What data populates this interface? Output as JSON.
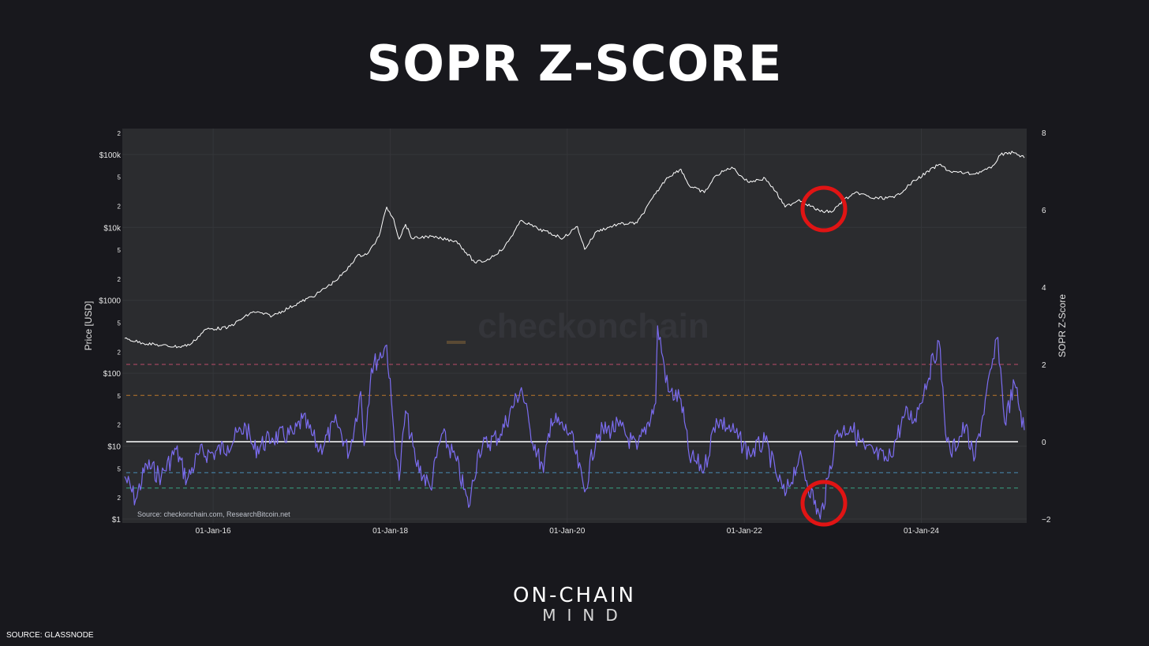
{
  "page": {
    "title": "SOPR Z-SCORE",
    "brand_top": "ON-CHAIN",
    "brand_bottom": "MIND",
    "footer_source": "SOURCE: GLASSNODE"
  },
  "chart_data": {
    "type": "line",
    "watermark": "checkonchain",
    "source_note": "Source: checkonchain.com, ResearchBitcoin.net",
    "grid": true,
    "colors": {
      "background": "#2b2c2f",
      "price_line": "#ffffff",
      "price_low_highlight": "#4ee7a8",
      "price_high_highlight": "#ff7f9a",
      "zscore_line": "#7b6cf0",
      "zero_line": "#ffffff",
      "band_plus2": "#e05577",
      "band_plus1": "#e08a2c",
      "band_minus1": "#4fa3d8",
      "band_minus15": "#3bc49a",
      "circle": "#e01414"
    },
    "x_axis": {
      "tick_labels": [
        "01-Jan-16",
        "01-Jan-18",
        "01-Jan-20",
        "01-Jan-22",
        "01-Jan-24"
      ],
      "range": [
        "2015-01-01",
        "2025-03-01"
      ]
    },
    "y_left": {
      "label": "Price [USD]",
      "scale": "log",
      "range": [
        1,
        200000
      ],
      "tick_labels": [
        "$1",
        "2",
        "5",
        "$10",
        "2",
        "5",
        "$100",
        "2",
        "5",
        "$1000",
        "2",
        "5",
        "$10k",
        "2",
        "5",
        "$100k",
        "2"
      ]
    },
    "y_right": {
      "label": "SOPR Z-Score",
      "range": [
        -2,
        8
      ],
      "tick_labels": [
        "−2",
        "0",
        "2",
        "4",
        "6",
        "8"
      ]
    },
    "reference_lines": [
      {
        "y": 2,
        "style": "dashed",
        "color": "#e05577"
      },
      {
        "y": 1.2,
        "style": "dashed",
        "color": "#e08a2c"
      },
      {
        "y": 0,
        "style": "solid",
        "color": "#ffffff"
      },
      {
        "y": -0.8,
        "style": "dashed",
        "color": "#4fa3d8"
      },
      {
        "y": -1.2,
        "style": "dashed",
        "color": "#3bc49a"
      }
    ],
    "series": [
      {
        "axis": "left",
        "color": "#ffffff",
        "points": [
          [
            "2015-01-01",
            300
          ],
          [
            "2015-03-15",
            260
          ],
          [
            "2015-06-01",
            240
          ],
          [
            "2015-08-15",
            230
          ],
          [
            "2015-10-01",
            250
          ],
          [
            "2015-12-01",
            400
          ],
          [
            "2016-03-01",
            420
          ],
          [
            "2016-06-15",
            700
          ],
          [
            "2016-09-01",
            610
          ],
          [
            "2016-12-31",
            960
          ],
          [
            "2017-03-01",
            1200
          ],
          [
            "2017-05-15",
            1800
          ],
          [
            "2017-07-01",
            2500
          ],
          [
            "2017-08-15",
            4000
          ],
          [
            "2017-10-01",
            4400
          ],
          [
            "2017-11-15",
            7500
          ],
          [
            "2017-12-17",
            19000
          ],
          [
            "2018-01-15",
            13000
          ],
          [
            "2018-02-06",
            6900
          ],
          [
            "2018-03-05",
            11000
          ],
          [
            "2018-04-01",
            7000
          ],
          [
            "2018-06-01",
            7500
          ],
          [
            "2018-08-01",
            7000
          ],
          [
            "2018-10-01",
            6500
          ],
          [
            "2018-12-15",
            3300
          ],
          [
            "2019-02-01",
            3500
          ],
          [
            "2019-04-15",
            5200
          ],
          [
            "2019-06-26",
            12500
          ],
          [
            "2019-09-01",
            9600
          ],
          [
            "2019-12-15",
            7100
          ],
          [
            "2020-02-12",
            10300
          ],
          [
            "2020-03-13",
            5000
          ],
          [
            "2020-05-01",
            8800
          ],
          [
            "2020-07-26",
            11000
          ],
          [
            "2020-10-15",
            11500
          ],
          [
            "2020-12-31",
            29000
          ],
          [
            "2021-02-15",
            48000
          ],
          [
            "2021-04-14",
            63000
          ],
          [
            "2021-05-19",
            37000
          ],
          [
            "2021-07-20",
            30000
          ],
          [
            "2021-09-07",
            52000
          ],
          [
            "2021-11-10",
            67000
          ],
          [
            "2022-01-15",
            42000
          ],
          [
            "2022-03-28",
            47000
          ],
          [
            "2022-05-10",
            31000
          ],
          [
            "2022-06-18",
            19000
          ],
          [
            "2022-08-15",
            24000
          ],
          [
            "2022-11-10",
            16500
          ],
          [
            "2022-12-31",
            16500
          ],
          [
            "2023-02-15",
            24000
          ],
          [
            "2023-04-15",
            30000
          ],
          [
            "2023-06-15",
            25000
          ],
          [
            "2023-09-11",
            25500
          ],
          [
            "2023-12-05",
            44000
          ],
          [
            "2024-03-14",
            73000
          ],
          [
            "2024-05-01",
            58000
          ],
          [
            "2024-08-05",
            54000
          ],
          [
            "2024-10-15",
            65000
          ],
          [
            "2024-11-22",
            98000
          ],
          [
            "2024-12-17",
            106000
          ],
          [
            "2025-01-20",
            105000
          ],
          [
            "2025-03-01",
            90000
          ]
        ]
      },
      {
        "axis": "right",
        "color": "#7b6cf0",
        "points": [
          [
            "2015-01-01",
            -0.9
          ],
          [
            "2015-02-15",
            -1.5
          ],
          [
            "2015-04-01",
            -0.6
          ],
          [
            "2015-06-01",
            -0.9
          ],
          [
            "2015-08-01",
            -0.2
          ],
          [
            "2015-09-15",
            -1.0
          ],
          [
            "2015-11-05",
            -0.3
          ],
          [
            "2016-01-01",
            -0.3
          ],
          [
            "2016-03-01",
            -0.1
          ],
          [
            "2016-05-15",
            0.4
          ],
          [
            "2016-06-17",
            -0.2
          ],
          [
            "2016-09-01",
            0.1
          ],
          [
            "2016-12-01",
            0.2
          ],
          [
            "2017-01-04",
            0.6
          ],
          [
            "2017-03-15",
            -0.2
          ],
          [
            "2017-05-25",
            0.5
          ],
          [
            "2017-07-15",
            -0.3
          ],
          [
            "2017-09-01",
            1.3
          ],
          [
            "2017-09-15",
            -0.1
          ],
          [
            "2017-10-15",
            1.9
          ],
          [
            "2017-12-17",
            2.5
          ],
          [
            "2018-01-15",
            0.3
          ],
          [
            "2018-02-06",
            -1.0
          ],
          [
            "2018-03-05",
            0.8
          ],
          [
            "2018-04-15",
            -0.5
          ],
          [
            "2018-06-15",
            -1.2
          ],
          [
            "2018-08-01",
            0.2
          ],
          [
            "2018-10-01",
            -0.5
          ],
          [
            "2018-11-20",
            -1.7
          ],
          [
            "2019-01-01",
            -0.2
          ],
          [
            "2019-04-01",
            0.2
          ],
          [
            "2019-06-26",
            1.4
          ],
          [
            "2019-08-01",
            0.3
          ],
          [
            "2019-09-25",
            -0.8
          ],
          [
            "2019-10-26",
            0.6
          ],
          [
            "2020-01-15",
            0.2
          ],
          [
            "2020-03-13",
            -1.3
          ],
          [
            "2020-05-01",
            0.2
          ],
          [
            "2020-08-01",
            0.4
          ],
          [
            "2020-10-15",
            -0.2
          ],
          [
            "2020-12-31",
            1.0
          ],
          [
            "2021-01-08",
            3.0
          ],
          [
            "2021-02-21",
            1.3
          ],
          [
            "2021-04-14",
            1.1
          ],
          [
            "2021-05-19",
            -0.4
          ],
          [
            "2021-07-20",
            -0.7
          ],
          [
            "2021-09-07",
            0.6
          ],
          [
            "2021-11-10",
            0.3
          ],
          [
            "2022-01-22",
            -0.3
          ],
          [
            "2022-03-28",
            0.0
          ],
          [
            "2022-05-10",
            -0.8
          ],
          [
            "2022-06-18",
            -1.4
          ],
          [
            "2022-08-15",
            -0.4
          ],
          [
            "2022-11-10",
            -2.0
          ],
          [
            "2022-12-15",
            -0.9
          ],
          [
            "2023-01-15",
            0.2
          ],
          [
            "2023-03-15",
            0.4
          ],
          [
            "2023-05-15",
            -0.2
          ],
          [
            "2023-08-17",
            -0.5
          ],
          [
            "2023-10-25",
            0.7
          ],
          [
            "2023-12-05",
            0.6
          ],
          [
            "2024-03-14",
            2.6
          ],
          [
            "2024-04-15",
            0.0
          ],
          [
            "2024-05-01",
            -0.3
          ],
          [
            "2024-07-01",
            0.4
          ],
          [
            "2024-08-05",
            -0.5
          ],
          [
            "2024-11-12",
            2.7
          ],
          [
            "2024-12-10",
            0.5
          ],
          [
            "2025-01-20",
            1.5
          ],
          [
            "2025-03-01",
            0.3
          ]
        ]
      }
    ]
  }
}
